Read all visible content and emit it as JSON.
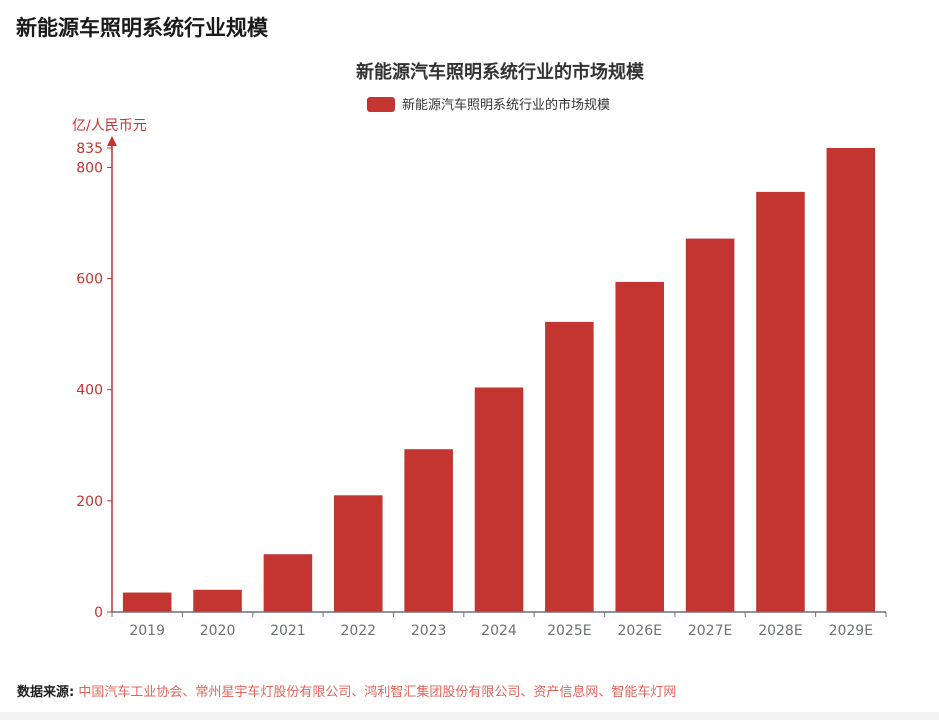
{
  "page": {
    "title": "新能源车照明系统行业规模"
  },
  "source": {
    "label": "数据来源:",
    "text": "中国汽车工业协会、常州星宇车灯股份有限公司、鸿利智汇集团股份有限公司、资产信息网、智能车灯网"
  },
  "colors": {
    "bar": "#c23531",
    "axis_red": "#c23531",
    "axis_x": "#6e7079",
    "tick_label_x": "#6e7079",
    "title": "#333333"
  },
  "chart_data": {
    "type": "bar",
    "title": "新能源汽车照明系统行业的市场规模",
    "ylabel": "亿/人民币元",
    "xlabel": "",
    "legend": {
      "entries": [
        "新能源汽车照明系统行业的市场规模"
      ],
      "placement": "top-center"
    },
    "ylim": [
      0,
      835
    ],
    "y_ticks": [
      0,
      200,
      400,
      600,
      800,
      835
    ],
    "grid": false,
    "categories": [
      "2019",
      "2020",
      "2021",
      "2022",
      "2023",
      "2024",
      "2025E",
      "2026E",
      "2027E",
      "2028E",
      "2029E"
    ],
    "series": [
      {
        "name": "新能源汽车照明系统行业的市场规模",
        "values": [
          35,
          40,
          104,
          210,
          293,
          404,
          522,
          594,
          672,
          756,
          835
        ]
      }
    ]
  }
}
